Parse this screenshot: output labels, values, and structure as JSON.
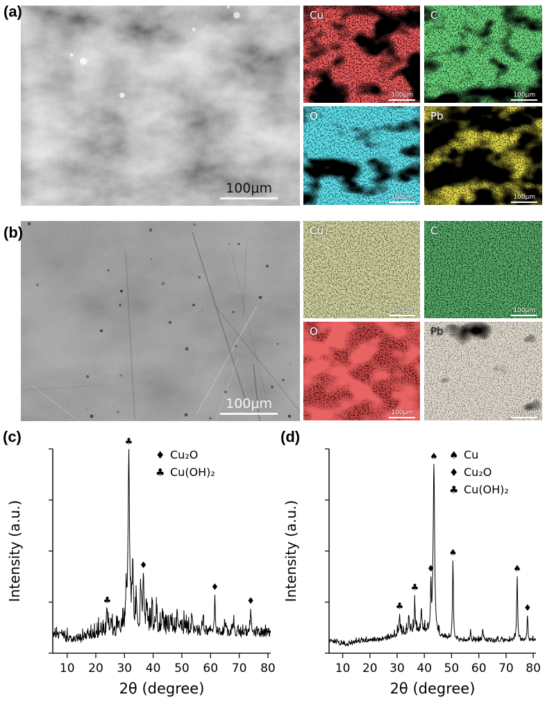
{
  "panels": {
    "a": {
      "label": "(a)",
      "sem": {
        "scale_label": "100μm",
        "style": "rough",
        "base": "#8f8f8f",
        "seed": 3,
        "text_color": "#111111",
        "bar_color": "#f5f5f5"
      },
      "maps": [
        {
          "element": "Cu",
          "scale_label": "100μm",
          "base": "#5e0a0c",
          "speckle": "#d02020",
          "freq": 0.5,
          "seed": 11,
          "blotch": 3.0,
          "blotch_off": -4.2
        },
        {
          "element": "C",
          "scale_label": "100μm",
          "base": "#0f4f1a",
          "speckle": "#2db23c",
          "freq": 0.55,
          "seed": 21,
          "blotch": 2.7,
          "blotch_off": -4.0
        },
        {
          "element": "O",
          "scale_label": "100μm",
          "base": "#0a6f7c",
          "speckle": "#27c3d3",
          "freq": 0.5,
          "seed": 31,
          "blotch": 2.8,
          "blotch_off": -4.1
        },
        {
          "element": "Pb",
          "scale_label": "100μm",
          "base": "#575104",
          "speckle": "#c4b415",
          "freq": 0.5,
          "seed": 41,
          "blotch": 3.2,
          "blotch_off": -4.1
        }
      ]
    },
    "b": {
      "label": "(b)",
      "sem": {
        "scale_label": "100μm",
        "style": "smooth",
        "base": "#6f6f6f",
        "seed": 9,
        "text_color": "#f5f5f5",
        "bar_color": "#f5f5f5"
      },
      "maps": [
        {
          "element": "Cu",
          "scale_label": "100μm",
          "base": "#6b6b3c",
          "speckle": "#a8a868",
          "freq": 0.55,
          "seed": 51,
          "blotch": 2.0,
          "blotch_off": -3.9
        },
        {
          "element": "C",
          "scale_label": "100μm",
          "base": "#0a3512",
          "speckle": "#1e6f2b",
          "freq": 0.6,
          "seed": 61,
          "blotch": 1.8,
          "blotch_off": -3.9
        },
        {
          "element": "O",
          "scale_label": "100μm",
          "base": "#3f0606",
          "speckle": "#a01414",
          "freq": 0.55,
          "seed": 71,
          "blotch": 1.8,
          "blotch_off": -3.9,
          "glow": "#d02020"
        },
        {
          "element": "Pb",
          "scale_label": "100μm",
          "base": "#8e8678",
          "speckle": "#c2b9a6",
          "freq": 0.6,
          "seed": 81,
          "blotch": 2.4,
          "blotch_off": -4.3,
          "label_color": "#1c1c1c"
        }
      ]
    }
  },
  "chart_data": [
    {
      "type": "line",
      "panel_label": "(c)",
      "xlabel": "2θ (degree)",
      "ylabel": "Intensity (a.u.)",
      "xlim": [
        5,
        81
      ],
      "ylim": [
        0,
        1.15
      ],
      "xticks": [
        10,
        20,
        30,
        40,
        50,
        60,
        70,
        80
      ],
      "legend": [
        {
          "marker": "♦",
          "label": "Cu₂O"
        },
        {
          "marker": "♣",
          "label": "Cu(OH)₂"
        }
      ],
      "legend_pos": [
        0.47,
        0.0
      ],
      "peaks": [
        {
          "x": 24.0,
          "h": 0.13,
          "m": "♣"
        },
        {
          "x": 25.3,
          "h": 0.08
        },
        {
          "x": 28.0,
          "h": 0.07
        },
        {
          "x": 30.6,
          "h": 0.18
        },
        {
          "x": 31.5,
          "h": 0.97,
          "m": "♣",
          "w": 0.3
        },
        {
          "x": 32.9,
          "h": 0.4
        },
        {
          "x": 34.1,
          "h": 0.16
        },
        {
          "x": 35.7,
          "h": 0.2
        },
        {
          "x": 36.6,
          "h": 0.33,
          "m": "♦"
        },
        {
          "x": 37.7,
          "h": 0.16
        },
        {
          "x": 39.6,
          "h": 0.12
        },
        {
          "x": 41.2,
          "h": 0.1
        },
        {
          "x": 43.2,
          "h": 0.11
        },
        {
          "x": 46.0,
          "h": 0.09
        },
        {
          "x": 48.5,
          "h": 0.08
        },
        {
          "x": 53.6,
          "h": 0.09
        },
        {
          "x": 57.4,
          "h": 0.1
        },
        {
          "x": 61.5,
          "h": 0.19,
          "m": "♦"
        },
        {
          "x": 65.0,
          "h": 0.07
        },
        {
          "x": 68.0,
          "h": 0.07
        },
        {
          "x": 74.0,
          "h": 0.12,
          "m": "♦"
        }
      ],
      "noise": {
        "amp": 0.045,
        "spike_p": 0.45,
        "spike_amp": 0.11,
        "band": [
          18,
          55
        ],
        "seed": 7
      },
      "baseline": {
        "level": 0.085,
        "dip_x": 13,
        "dip_w": 5,
        "dip_a": 0.035,
        "hump_x": 45,
        "hump_w": 14,
        "hump_a": 0.015
      }
    },
    {
      "type": "line",
      "panel_label": "(d)",
      "xlabel": "2θ (degree)",
      "ylabel": "Intensity (a.u.)",
      "xlim": [
        5,
        81
      ],
      "ylim": [
        0,
        1.15
      ],
      "xticks": [
        10,
        20,
        30,
        40,
        50,
        60,
        70,
        80
      ],
      "legend": [
        {
          "marker": "♠",
          "label": "Cu"
        },
        {
          "marker": "♦",
          "label": "Cu₂O"
        },
        {
          "marker": "♣",
          "label": "Cu(OH)₂"
        }
      ],
      "legend_pos": [
        0.58,
        0.0
      ],
      "peaks": [
        {
          "x": 30.9,
          "h": 0.12,
          "m": "♣"
        },
        {
          "x": 34.3,
          "h": 0.09
        },
        {
          "x": 36.5,
          "h": 0.16,
          "m": "♣"
        },
        {
          "x": 38.9,
          "h": 0.12
        },
        {
          "x": 42.4,
          "h": 0.22,
          "m": "♦"
        },
        {
          "x": 43.5,
          "h": 0.97,
          "m": "♠",
          "w": 0.3
        },
        {
          "x": 50.5,
          "h": 0.44,
          "m": "♠"
        },
        {
          "x": 57.0,
          "h": 0.05
        },
        {
          "x": 61.4,
          "h": 0.06
        },
        {
          "x": 74.1,
          "h": 0.37,
          "m": "♠"
        },
        {
          "x": 77.9,
          "h": 0.13,
          "m": "♦"
        }
      ],
      "noise": {
        "amp": 0.022,
        "spike_p": 0.3,
        "spike_amp": 0.05,
        "band": [
          28,
          46
        ],
        "seed": 17
      },
      "baseline": {
        "level": 0.06,
        "dip_x": 11,
        "dip_w": 4,
        "dip_a": 0.02,
        "hump_x": 37,
        "hump_w": 9,
        "hump_a": 0.05
      }
    }
  ]
}
